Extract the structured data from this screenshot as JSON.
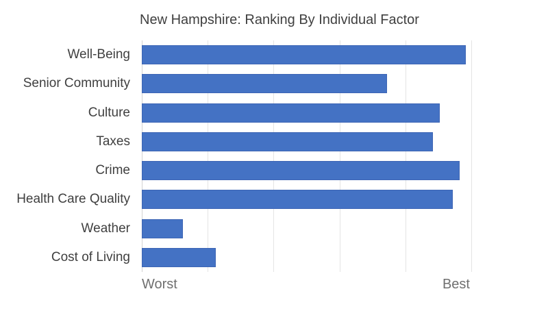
{
  "title": "New Hampshire: Ranking By Individual Factor",
  "axis": {
    "min_label": "Worst",
    "max_label": "Best"
  },
  "colors": {
    "bar_fill": "#4472C4",
    "bar_border": "#3D65B4",
    "gridline": "#E4E4E4",
    "axis_line": "#D2D2D2",
    "title_text": "#3F3F3F",
    "category_text": "#3F3F3F",
    "axis_label_text": "#6F6F6F",
    "background": "#FFFFFF"
  },
  "chart_data": {
    "type": "bar",
    "orientation": "horizontal",
    "title": "New Hampshire: Ranking By Individual Factor",
    "categories": [
      "Well-Being",
      "Senior Community",
      "Culture",
      "Taxes",
      "Crime",
      "Health Care Quality",
      "Weather",
      "Cost of Living"
    ],
    "values": [
      98,
      74,
      90,
      88,
      96,
      94,
      12,
      22
    ],
    "xlim": [
      0,
      100
    ],
    "xtick_labels": [
      "Worst",
      "Best"
    ],
    "gridline_interval_percent": 20,
    "grid": "vertical-only",
    "legend": "none",
    "value_note": "values estimated from bar lengths on a Worst=0 to Best=100 scale"
  }
}
